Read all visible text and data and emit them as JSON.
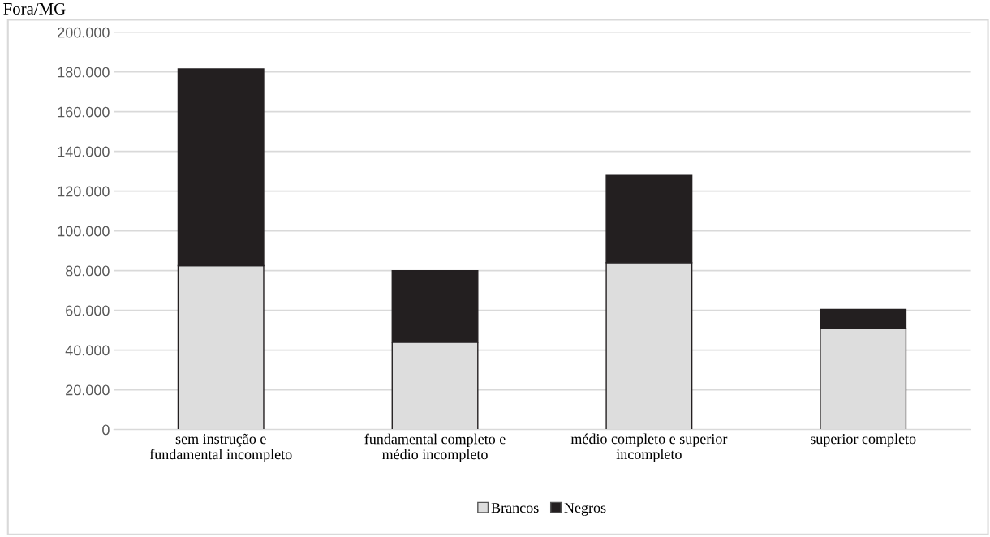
{
  "chart_data": {
    "type": "bar",
    "title": "Fora/MG",
    "stacked": true,
    "categories": [
      "sem instrução e\nfundamental incompleto",
      "fundamental completo e\nmédio incompleto",
      "médio completo e superior\nincompleto",
      "superior completo"
    ],
    "series": [
      {
        "name": "Brancos",
        "color": "#dddddd",
        "values": [
          82500,
          44000,
          84000,
          51000
        ]
      },
      {
        "name": "Negros",
        "color": "#231f20",
        "values": [
          99000,
          36000,
          44000,
          9500
        ]
      }
    ],
    "ylim": [
      0,
      200000
    ],
    "yticks": [
      {
        "value": 0,
        "label": "0"
      },
      {
        "value": 20000,
        "label": "20.000"
      },
      {
        "value": 40000,
        "label": "40.000"
      },
      {
        "value": 60000,
        "label": "60.000"
      },
      {
        "value": 80000,
        "label": "80.000"
      },
      {
        "value": 100000,
        "label": "100.000"
      },
      {
        "value": 120000,
        "label": "120.000"
      },
      {
        "value": 140000,
        "label": "140.000"
      },
      {
        "value": 160000,
        "label": "160.000"
      },
      {
        "value": 180000,
        "label": "180.000"
      },
      {
        "value": 200000,
        "label": "200.000"
      }
    ],
    "grid": "y",
    "legend": "bottom"
  }
}
